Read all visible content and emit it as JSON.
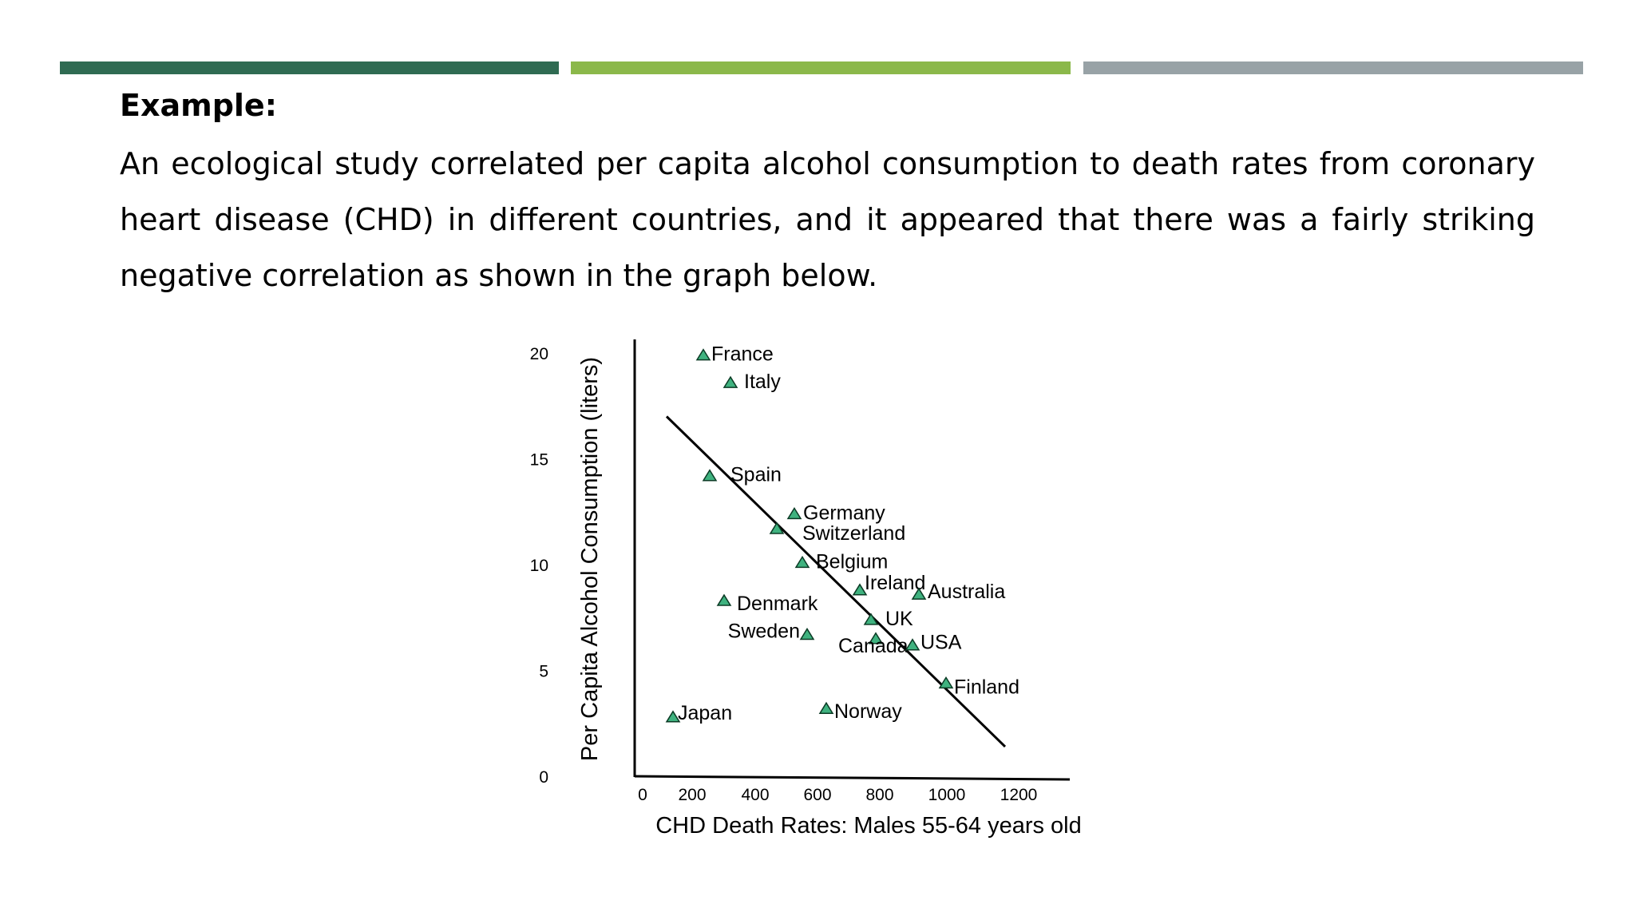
{
  "colors": {
    "bar1": "#2f6b52",
    "bar2": "#8bb84a",
    "bar3": "#98a2a6",
    "marker": "#3fb27f"
  },
  "heading": "Example:",
  "paragraph": "An ecological study correlated per capita alcohol consumption to death rates from coronary heart disease (CHD) in different countries, and it appeared that there was a fairly striking negative correlation as shown in the graph below.",
  "chart_data": {
    "type": "scatter",
    "title": "",
    "xlabel": "CHD Death Rates: Males 55-64 years old",
    "ylabel": "Per Capita Alcohol Consumption (liters)",
    "xlim": [
      0,
      1400
    ],
    "ylim": [
      0,
      20
    ],
    "xticks": [
      "0",
      "200",
      "400",
      "600",
      "800",
      "1000",
      "1200"
    ],
    "yticks": [
      "0",
      "5",
      "10",
      "15",
      "20"
    ],
    "grid": false,
    "points": [
      {
        "label": "France",
        "x": 215,
        "y": 19.9
      },
      {
        "label": "Italy",
        "x": 300,
        "y": 18.6
      },
      {
        "label": "Spain",
        "x": 235,
        "y": 14.2
      },
      {
        "label": "Germany",
        "x": 500,
        "y": 12.4
      },
      {
        "label": "Switzerland",
        "x": 445,
        "y": 11.7
      },
      {
        "label": "Belgium",
        "x": 525,
        "y": 10.1
      },
      {
        "label": "Ireland",
        "x": 705,
        "y": 8.8
      },
      {
        "label": "Australia",
        "x": 890,
        "y": 8.6
      },
      {
        "label": "Denmark",
        "x": 280,
        "y": 8.3
      },
      {
        "label": "UK",
        "x": 740,
        "y": 7.4
      },
      {
        "label": "Sweden",
        "x": 540,
        "y": 6.7
      },
      {
        "label": "Canada",
        "x": 755,
        "y": 6.5
      },
      {
        "label": "USA",
        "x": 870,
        "y": 6.2
      },
      {
        "label": "Finland",
        "x": 975,
        "y": 4.4
      },
      {
        "label": "Japan",
        "x": 120,
        "y": 2.8
      },
      {
        "label": "Norway",
        "x": 600,
        "y": 3.2
      }
    ],
    "trendline": {
      "x1": 100,
      "y1": 17.0,
      "x2": 1160,
      "y2": 1.4
    }
  }
}
